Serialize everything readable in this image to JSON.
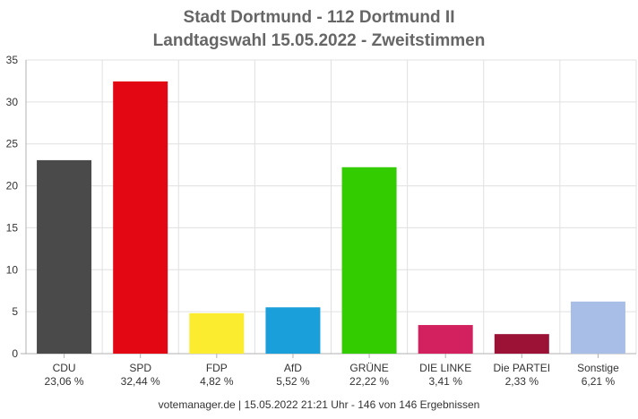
{
  "chart_data": {
    "type": "bar",
    "title": "Stadt Dortmund - 112 Dortmund II",
    "subtitle": "Landtagswahl 15.05.2022  - Zweitstimmen",
    "xlabel": "",
    "ylabel": "",
    "ylim": [
      0,
      35
    ],
    "yticks": [
      0,
      5,
      10,
      15,
      20,
      25,
      30,
      35
    ],
    "grid": true,
    "categories": [
      "CDU",
      "SPD",
      "FDP",
      "AfD",
      "GRÜNE",
      "DIE LINKE",
      "Die PARTEI",
      "Sonstige"
    ],
    "value_labels": [
      "23,06 %",
      "32,44 %",
      "4,82 %",
      "5,52 %",
      "22,22 %",
      "3,41 %",
      "2,33 %",
      "6,21 %"
    ],
    "values": [
      23.06,
      32.44,
      4.82,
      5.52,
      22.22,
      3.41,
      2.33,
      6.21
    ],
    "colors": [
      "#4a4a4a",
      "#e30613",
      "#fcec2f",
      "#1a9fdb",
      "#33cc00",
      "#d2215e",
      "#9c1237",
      "#a9bee6"
    ]
  },
  "footer": "votemanager.de | 15.05.2022 21:21 Uhr - 146 von 146 Ergebnissen"
}
